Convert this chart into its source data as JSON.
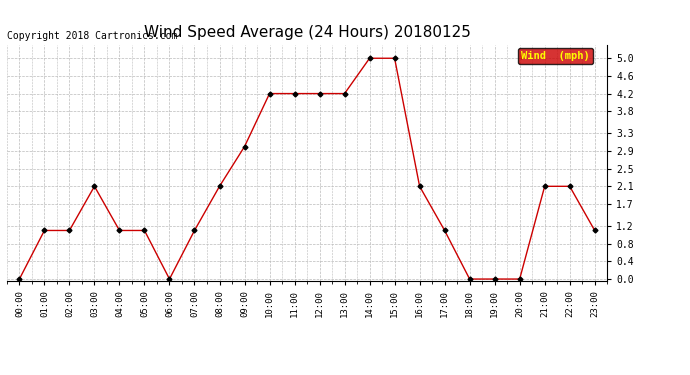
{
  "title": "Wind Speed Average (24 Hours) 20180125",
  "copyright_text": "Copyright 2018 Cartronics.com",
  "legend_label": "Wind  (mph)",
  "x_labels": [
    "00:00",
    "01:00",
    "02:00",
    "03:00",
    "04:00",
    "05:00",
    "06:00",
    "07:00",
    "08:00",
    "09:00",
    "10:00",
    "11:00",
    "12:00",
    "13:00",
    "14:00",
    "15:00",
    "16:00",
    "17:00",
    "18:00",
    "19:00",
    "20:00",
    "21:00",
    "22:00",
    "23:00"
  ],
  "y_values": [
    0.0,
    1.1,
    1.1,
    2.1,
    1.1,
    1.1,
    0.0,
    1.1,
    2.1,
    3.0,
    4.2,
    4.2,
    4.2,
    4.2,
    5.0,
    5.0,
    2.1,
    1.1,
    0.0,
    0.0,
    0.0,
    2.1,
    2.1,
    1.1
  ],
  "y_ticks": [
    0.0,
    0.4,
    0.8,
    1.2,
    1.7,
    2.1,
    2.5,
    2.9,
    3.3,
    3.8,
    4.2,
    4.6,
    5.0
  ],
  "ylim": [
    -0.05,
    5.3
  ],
  "line_color": "#cc0000",
  "marker_color": "#000000",
  "marker": "D",
  "marker_size": 2.5,
  "background_color": "#ffffff",
  "grid_color": "#bbbbbb",
  "title_fontsize": 11,
  "copyright_fontsize": 7,
  "legend_bg": "#cc0000",
  "legend_text_color": "#ffff00"
}
